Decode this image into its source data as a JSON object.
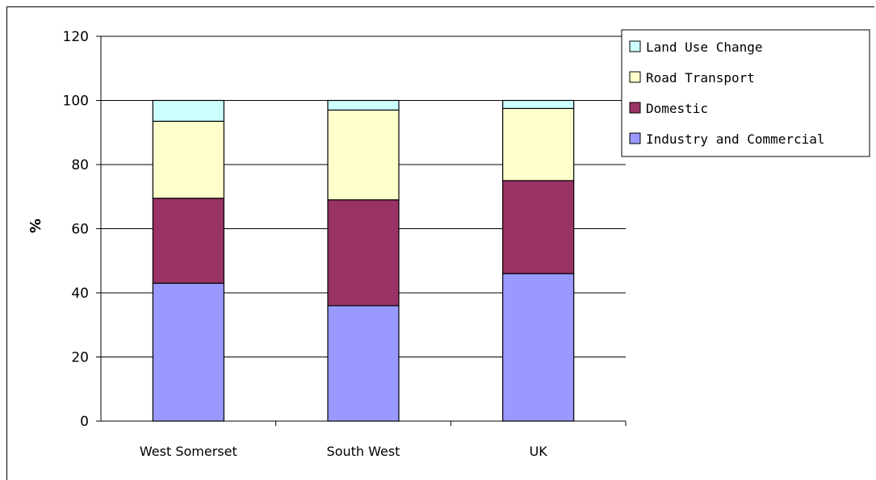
{
  "chart_data": {
    "type": "bar",
    "stacked": true,
    "categories": [
      "West Somerset",
      "South West",
      "UK"
    ],
    "series": [
      {
        "name": "Industry and Commercial",
        "color": "#9999FF",
        "values": [
          43,
          36,
          46
        ]
      },
      {
        "name": "Domestic",
        "color": "#993366",
        "values": [
          26.5,
          33,
          29
        ]
      },
      {
        "name": "Road Transport",
        "color": "#FFFFCC",
        "values": [
          24,
          28,
          22.5
        ]
      },
      {
        "name": "Land Use Change",
        "color": "#CCFFFF",
        "values": [
          6.5,
          3,
          2.5
        ]
      }
    ],
    "title": "",
    "xlabel": "",
    "ylabel": "%",
    "ylim": [
      0,
      120
    ],
    "yticks": [
      0,
      20,
      40,
      60,
      80,
      100,
      120
    ],
    "grid": true,
    "legend_position": "top-right",
    "legend_order": [
      "Land Use Change",
      "Road Transport",
      "Domestic",
      "Industry and Commercial"
    ]
  }
}
